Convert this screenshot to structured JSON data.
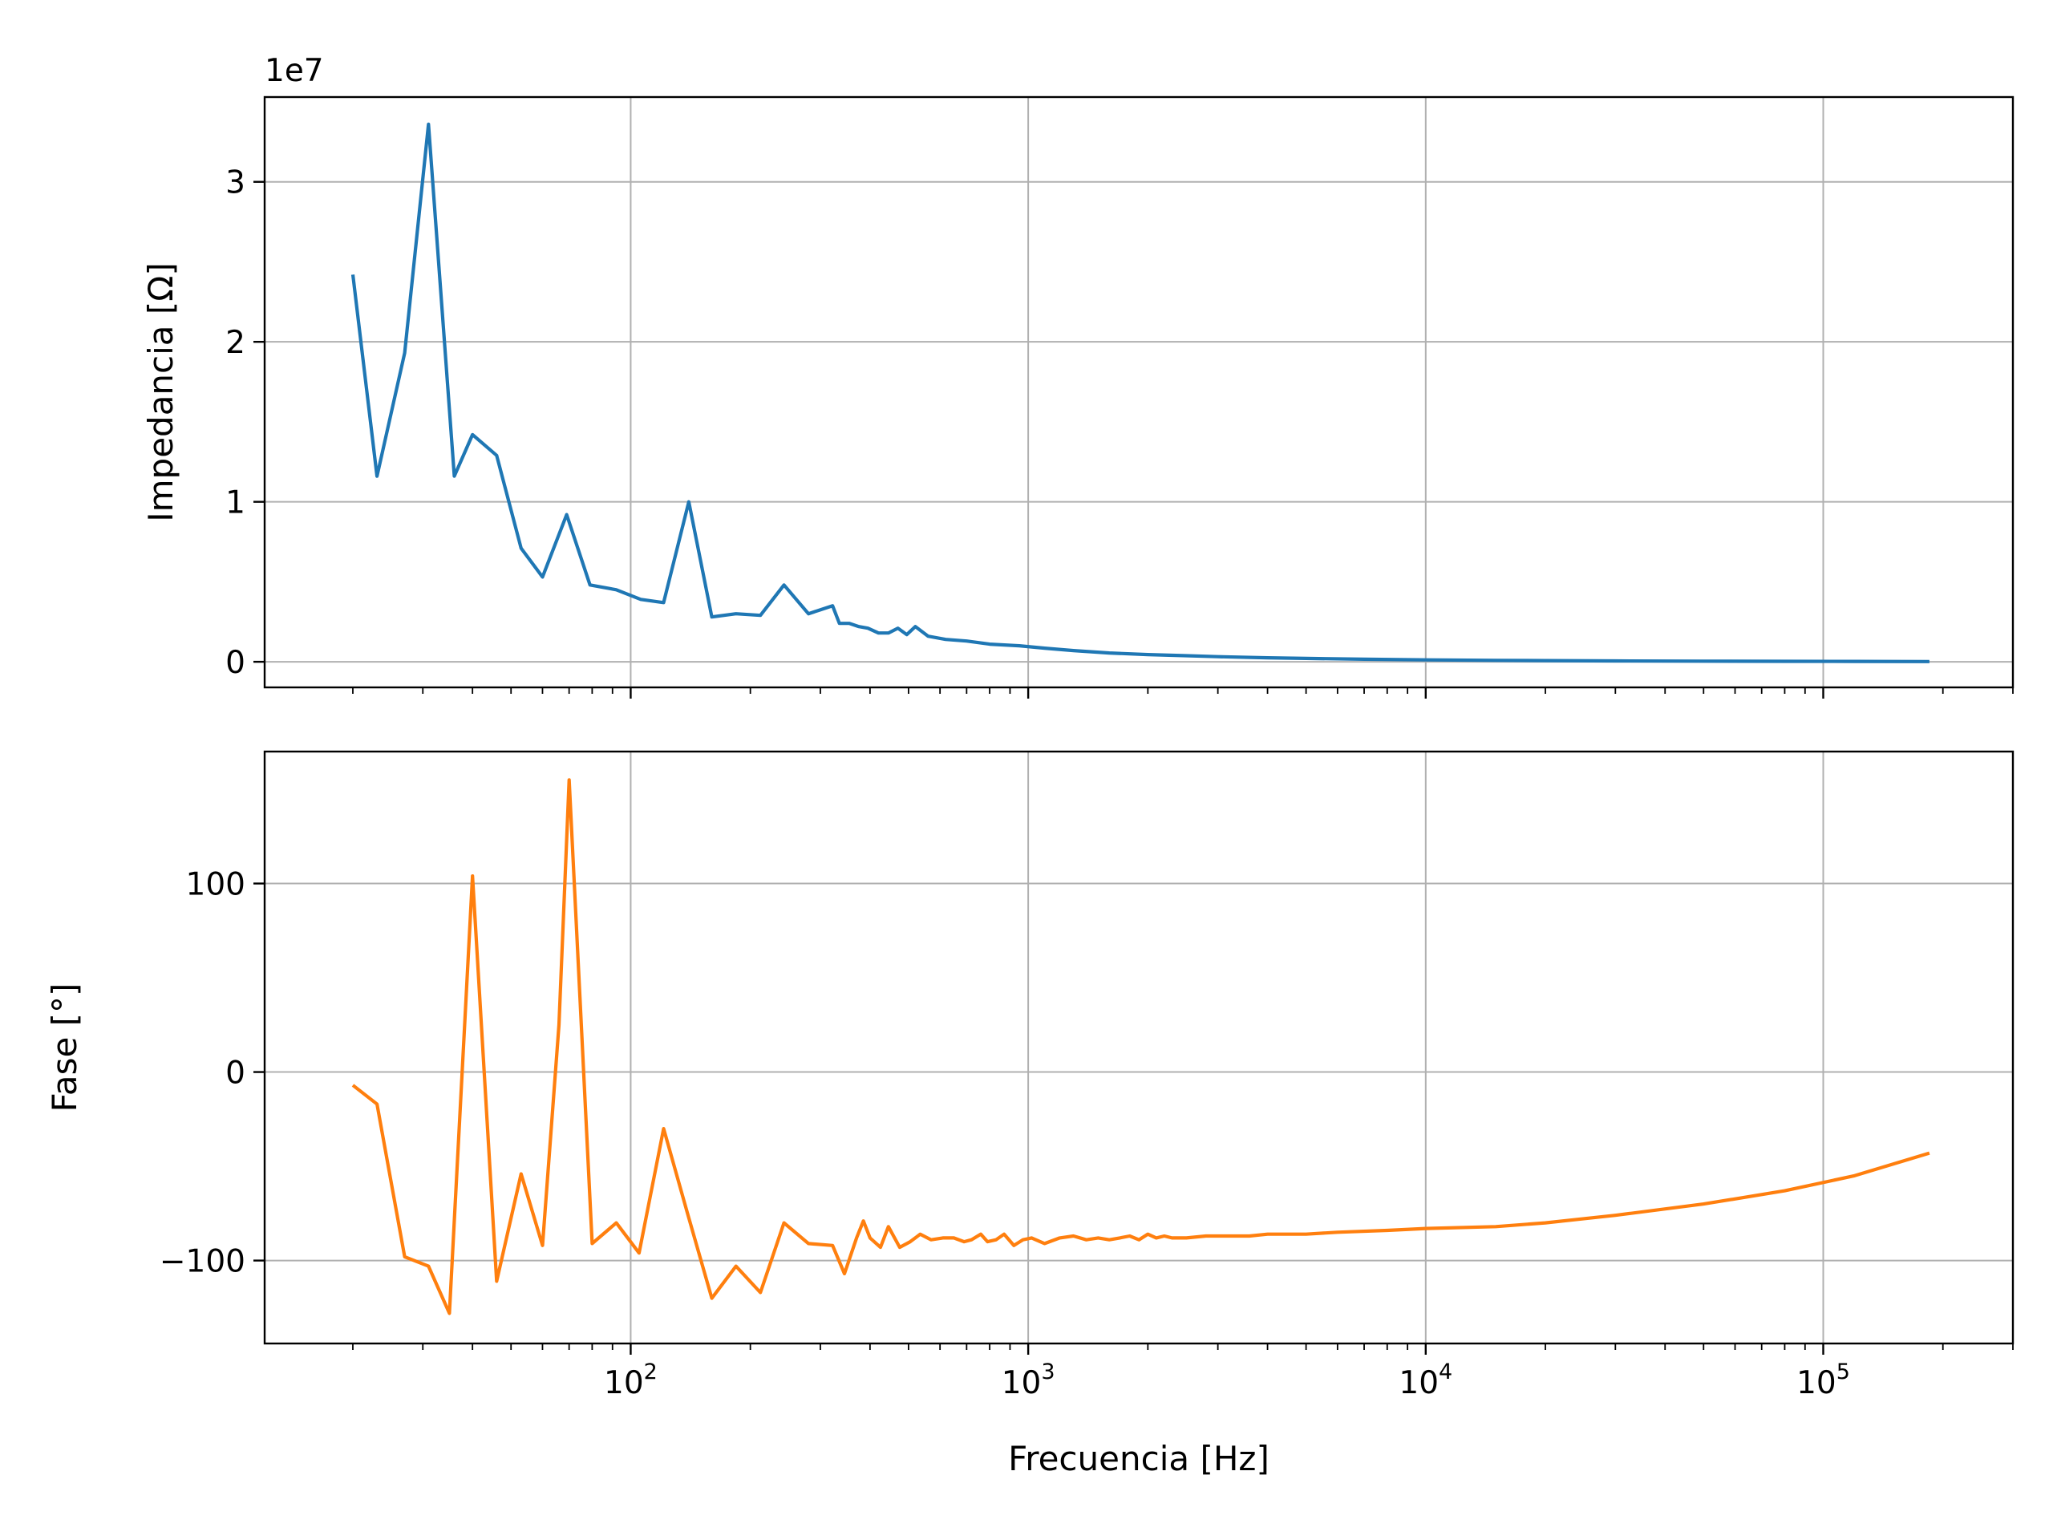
{
  "chart_data": [
    {
      "type": "line",
      "panel": "top",
      "ylabel": "Impedancia [Ω]",
      "xlabel": "",
      "xscale": "log",
      "xlim": [
        12,
        300000
      ],
      "ylim": [
        -1600000,
        35300000
      ],
      "yticks": [
        0,
        10000000,
        20000000,
        30000000
      ],
      "ytick_labels": [
        "0",
        "1",
        "2",
        "3"
      ],
      "y_offset_label": "1e7",
      "grid": true,
      "color": "#1f77b4",
      "x": [
        20,
        23,
        27,
        31,
        36,
        40,
        46,
        53,
        60,
        69,
        79,
        92,
        106,
        121,
        140,
        160,
        184,
        212,
        243,
        280,
        322,
        335,
        355,
        375,
        395,
        420,
        445,
        470,
        495,
        520,
        560,
        620,
        700,
        800,
        950,
        1100,
        1300,
        1600,
        2000,
        2500,
        3000,
        4000,
        5000,
        7000,
        10000,
        15000,
        20000,
        30000,
        50000,
        80000,
        120000,
        185000
      ],
      "y": [
        24200000,
        11600000,
        19300000,
        33600000,
        11600000,
        14200000,
        12900000,
        7100000,
        5300000,
        9200000,
        4800000,
        4500000,
        3900000,
        3700000,
        10000000,
        2800000,
        3000000,
        2900000,
        4800000,
        3000000,
        3500000,
        2400000,
        2400000,
        2200000,
        2100000,
        1800000,
        1800000,
        2100000,
        1700000,
        2200000,
        1600000,
        1400000,
        1300000,
        1100000,
        1000000,
        850000,
        700000,
        550000,
        450000,
        380000,
        320000,
        250000,
        210000,
        160000,
        120000,
        90000,
        75000,
        55000,
        40000,
        30000,
        22000,
        15000
      ]
    },
    {
      "type": "line",
      "panel": "bottom",
      "ylabel": "Fase [°]",
      "xlabel": "Frecuencia [Hz]",
      "xscale": "log",
      "xlim": [
        12,
        300000
      ],
      "ylim": [
        -144,
        170
      ],
      "yticks": [
        -100,
        0,
        100
      ],
      "ytick_labels": [
        "−100",
        "0",
        "100"
      ],
      "xticks": [
        100,
        1000,
        10000,
        100000
      ],
      "xtick_labels": [
        {
          "base": "10",
          "exp": "2"
        },
        {
          "base": "10",
          "exp": "3"
        },
        {
          "base": "10",
          "exp": "4"
        },
        {
          "base": "10",
          "exp": "5"
        }
      ],
      "grid": true,
      "color": "#ff7f0e",
      "x": [
        20,
        23,
        27,
        31,
        35,
        40,
        46,
        53,
        60,
        66,
        70,
        80,
        92,
        105,
        121,
        139,
        160,
        184,
        212,
        243,
        280,
        322,
        345,
        370,
        385,
        400,
        425,
        445,
        475,
        505,
        535,
        570,
        610,
        650,
        690,
        720,
        760,
        790,
        830,
        870,
        920,
        970,
        1020,
        1100,
        1200,
        1300,
        1400,
        1500,
        1600,
        1700,
        1800,
        1900,
        2000,
        2100,
        2200,
        2300,
        2500,
        2800,
        3200,
        3600,
        4000,
        5000,
        6000,
        8000,
        10000,
        15000,
        20000,
        30000,
        50000,
        80000,
        120000,
        185000
      ],
      "y": [
        -7,
        -17,
        -98,
        -103,
        -128,
        104,
        -111,
        -54,
        -92,
        25,
        155,
        -91,
        -80,
        -96,
        -30,
        -75,
        -120,
        -103,
        -117,
        -80,
        -91,
        -92,
        -107,
        -88,
        -79,
        -88,
        -93,
        -82,
        -93,
        -90,
        -86,
        -89,
        -88,
        -88,
        -90,
        -89,
        -86,
        -90,
        -89,
        -86,
        -92,
        -89,
        -88,
        -91,
        -88,
        -87,
        -89,
        -88,
        -89,
        -88,
        -87,
        -89,
        -86,
        -88,
        -87,
        -88,
        -88,
        -87,
        -87,
        -87,
        -86,
        -86,
        -85,
        -84,
        -83,
        -82,
        -80,
        -76,
        -70,
        -63,
        -55,
        -43
      ]
    }
  ]
}
